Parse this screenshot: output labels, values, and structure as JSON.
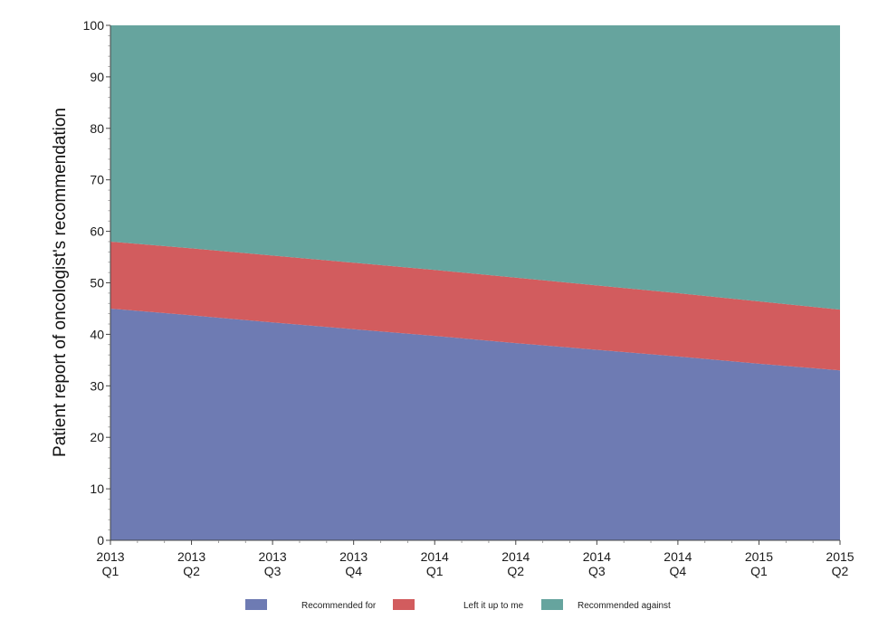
{
  "chart_data": {
    "type": "area",
    "stacked": true,
    "categories": [
      "2013 Q1",
      "2013 Q2",
      "2013 Q3",
      "2013 Q4",
      "2014 Q1",
      "2014 Q2",
      "2014 Q3",
      "2014 Q4",
      "2015 Q1",
      "2015 Q2"
    ],
    "category_lines": [
      [
        "2013",
        "Q1"
      ],
      [
        "2013",
        "Q2"
      ],
      [
        "2013",
        "Q3"
      ],
      [
        "2013",
        "Q4"
      ],
      [
        "2014",
        "Q1"
      ],
      [
        "2014",
        "Q2"
      ],
      [
        "2014",
        "Q3"
      ],
      [
        "2014",
        "Q4"
      ],
      [
        "2015",
        "Q1"
      ],
      [
        "2015",
        "Q2"
      ]
    ],
    "ylabel": "Patient report of oncologist's recommendation",
    "xlabel": "",
    "ylim": [
      0,
      100
    ],
    "yticks": [
      0,
      10,
      20,
      30,
      40,
      50,
      60,
      70,
      80,
      90,
      100
    ],
    "grid": false,
    "legend_position": "bottom",
    "series": [
      {
        "name": "Recommended for",
        "color": "#6e7bb3",
        "values": [
          45,
          43.7,
          42.3,
          41,
          39.7,
          38.3,
          37,
          35.7,
          34.3,
          33
        ]
      },
      {
        "name": "Left it up to me",
        "color": "#d25c5e",
        "values": [
          13,
          13,
          13,
          12.9,
          12.8,
          12.7,
          12.5,
          12.3,
          12.1,
          11.8
        ]
      },
      {
        "name": "Recommended against",
        "color": "#66a49e",
        "values": [
          42,
          43.3,
          44.7,
          46.1,
          47.5,
          49,
          50.5,
          52,
          53.6,
          55.2
        ]
      }
    ]
  }
}
